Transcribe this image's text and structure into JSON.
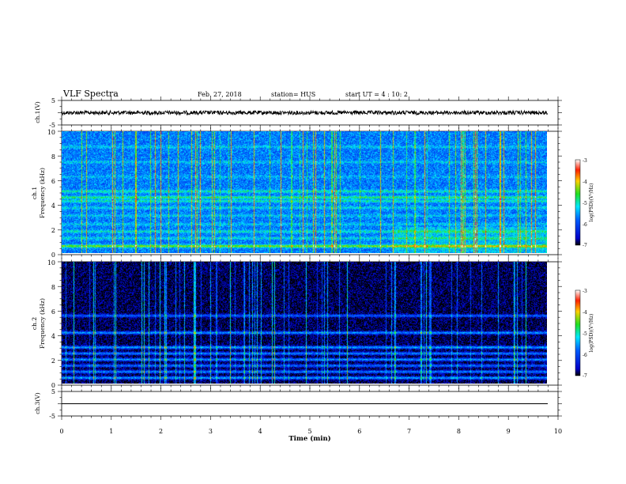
{
  "header": {
    "title": "VLF Spectra",
    "date": "Feb. 27, 2018",
    "station": "station= HUS",
    "start": "start  UT =   4 : 10: 2"
  },
  "chart_data": {
    "type": "heatmap",
    "xlabel": "Time (min)",
    "xlim": [
      0,
      10
    ],
    "x_ticks": [
      "0",
      "1",
      "2",
      "3",
      "4",
      "5",
      "6",
      "7",
      "8",
      "9",
      "10"
    ],
    "data_end_min": 9.8,
    "panels": [
      {
        "id": "ch1-wave",
        "kind": "waveform",
        "ylabel": "ch.1(V)",
        "ylim": [
          -5,
          5
        ],
        "y_ticks": [
          "5",
          "-5"
        ],
        "trace_level": 0,
        "noise_amplitude": 0.8
      },
      {
        "id": "ch1-spec",
        "kind": "spectrogram",
        "ylabel": "ch.1",
        "ylabel2": "Frequency (kHz)",
        "ylim": [
          0,
          10
        ],
        "y_ticks": [
          "0",
          "2",
          "4",
          "6",
          "8",
          "10"
        ],
        "colorbar": {
          "label": "log(PSD)(V²/Hz)",
          "range": [
            -7,
            -3
          ],
          "ticks": [
            "-3",
            "-4",
            "-5",
            "-6",
            "-7"
          ]
        },
        "base_level": -5.7,
        "bands_khz": [
          {
            "f": 0.6,
            "level": -4.4
          },
          {
            "f": 1.25,
            "level": -5.2
          },
          {
            "f": 1.8,
            "level": -5.1
          },
          {
            "f": 2.4,
            "level": -5.3
          },
          {
            "f": 3.1,
            "level": -5.3
          },
          {
            "f": 3.75,
            "level": -5.2
          },
          {
            "f": 4.3,
            "level": -5.0
          },
          {
            "f": 4.6,
            "level": -4.8
          },
          {
            "f": 5.1,
            "level": -5.0
          },
          {
            "f": 6.3,
            "level": -5.4
          },
          {
            "f": 7.5,
            "level": -5.3
          },
          {
            "f": 8.75,
            "level": -5.3
          }
        ]
      },
      {
        "id": "ch2-spec",
        "kind": "spectrogram",
        "ylabel": "ch.2",
        "ylabel2": "Frequency (kHz)",
        "ylim": [
          0,
          10
        ],
        "y_ticks": [
          "0",
          "2",
          "4",
          "6",
          "8",
          "10"
        ],
        "colorbar": {
          "label": "log(PSD)(V²/Hz)",
          "range": [
            -7,
            -3
          ],
          "ticks": [
            "-3",
            "-4",
            "-5",
            "-6",
            "-7"
          ]
        },
        "base_level": -6.9,
        "bands_khz": [
          {
            "f": 0.5,
            "level": -5.5
          },
          {
            "f": 1.0,
            "level": -5.7
          },
          {
            "f": 1.5,
            "level": -5.8
          },
          {
            "f": 2.0,
            "level": -5.6
          },
          {
            "f": 2.5,
            "level": -5.7
          },
          {
            "f": 3.0,
            "level": -5.5
          },
          {
            "f": 4.2,
            "level": -5.6
          },
          {
            "f": 5.6,
            "level": -5.9
          }
        ]
      },
      {
        "id": "ch3-wave",
        "kind": "waveform",
        "ylabel": "ch.3(V)",
        "ylim": [
          -5,
          5
        ],
        "y_ticks": [
          "5",
          "-5"
        ],
        "trace_level": 0,
        "noise_amplitude": 0
      }
    ]
  }
}
